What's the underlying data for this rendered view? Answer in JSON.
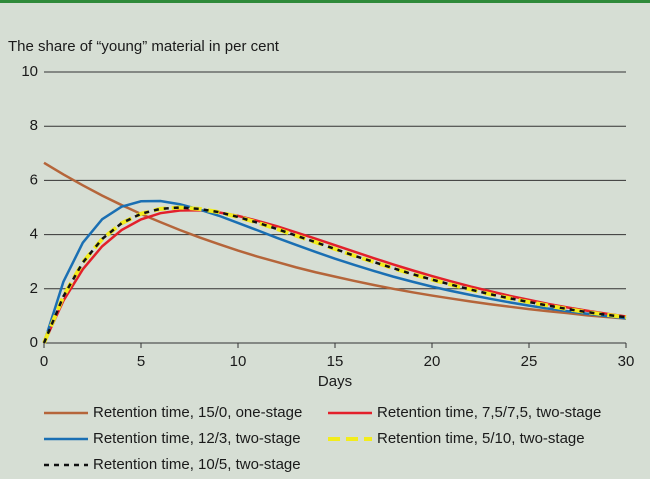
{
  "chart_data": {
    "type": "line",
    "title": "The share of “young” material in per cent",
    "x_label": "Days",
    "x": [
      0,
      1,
      2,
      3,
      4,
      5,
      6,
      7,
      8,
      9,
      10,
      11,
      12,
      13,
      14,
      15,
      16,
      17,
      18,
      19,
      20,
      21,
      22,
      23,
      24,
      25,
      26,
      27,
      28,
      29,
      30
    ],
    "xlim": [
      0,
      30
    ],
    "xticks": [
      0,
      5,
      10,
      15,
      20,
      25,
      30
    ],
    "ylim": [
      0,
      10
    ],
    "yticks": [
      0,
      2,
      4,
      6,
      8,
      10
    ],
    "grid": true,
    "series": [
      {
        "name": "Retention time, 15/0, one-stage",
        "color": "#b5653a",
        "style": "solid",
        "values": [
          6.65,
          6.22,
          5.82,
          5.44,
          5.09,
          4.76,
          4.46,
          4.17,
          3.9,
          3.65,
          3.41,
          3.19,
          2.99,
          2.79,
          2.61,
          2.45,
          2.29,
          2.14,
          2.0,
          1.87,
          1.75,
          1.64,
          1.53,
          1.43,
          1.34,
          1.25,
          1.17,
          1.1,
          1.02,
          0.96,
          0.9
        ]
      },
      {
        "name": "Retention time, 7,5/7,5, two-stage",
        "color": "#e3202a",
        "style": "solid",
        "values": [
          0,
          1.56,
          2.72,
          3.57,
          4.17,
          4.56,
          4.79,
          4.89,
          4.9,
          4.82,
          4.69,
          4.51,
          4.31,
          4.08,
          3.85,
          3.61,
          3.37,
          3.13,
          2.9,
          2.68,
          2.47,
          2.27,
          2.08,
          1.91,
          1.74,
          1.59,
          1.44,
          1.31,
          1.19,
          1.08,
          0.98
        ]
      },
      {
        "name": "Retention time, 12/3, two-stage",
        "color": "#1a6fb3",
        "style": "solid",
        "values": [
          0,
          2.26,
          3.7,
          4.57,
          5.03,
          5.23,
          5.24,
          5.12,
          4.93,
          4.7,
          4.43,
          4.16,
          3.88,
          3.62,
          3.36,
          3.11,
          2.88,
          2.66,
          2.45,
          2.26,
          2.08,
          1.92,
          1.77,
          1.63,
          1.5,
          1.38,
          1.27,
          1.17,
          1.08,
          0.99,
          0.91
        ]
      },
      {
        "name": "Retention time, 5/10, two-stage",
        "color": "#f2ec1c",
        "style": "dashed",
        "values": [
          0,
          1.72,
          2.97,
          3.84,
          4.42,
          4.77,
          4.95,
          5.0,
          4.95,
          4.83,
          4.65,
          4.44,
          4.21,
          3.96,
          3.72,
          3.47,
          3.22,
          2.99,
          2.76,
          2.54,
          2.34,
          2.15,
          1.97,
          1.8,
          1.65,
          1.51,
          1.38,
          1.25,
          1.14,
          1.04,
          0.95
        ]
      },
      {
        "name": "Retention time, 10/5, two-stage",
        "color": "#111111",
        "style": "dotted",
        "values": [
          0,
          1.72,
          2.97,
          3.84,
          4.42,
          4.77,
          4.95,
          5.0,
          4.95,
          4.83,
          4.65,
          4.44,
          4.21,
          3.96,
          3.72,
          3.47,
          3.22,
          2.99,
          2.76,
          2.54,
          2.34,
          2.15,
          1.97,
          1.8,
          1.65,
          1.51,
          1.38,
          1.25,
          1.14,
          1.04,
          0.95
        ]
      }
    ]
  }
}
